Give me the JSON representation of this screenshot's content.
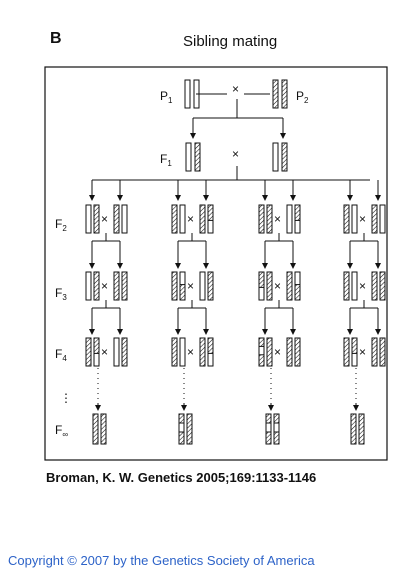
{
  "figure": {
    "panel_letter": "B",
    "title": "Sibling mating",
    "cross_symbol": "×",
    "ellipsis": "⋮",
    "generations": [
      {
        "base": "P",
        "sub": "1"
      },
      {
        "base": "P",
        "sub": "2"
      },
      {
        "base": "F",
        "sub": "1"
      },
      {
        "base": "F",
        "sub": "2"
      },
      {
        "base": "F",
        "sub": "3"
      },
      {
        "base": "F",
        "sub": "4"
      },
      {
        "base": "F",
        "sub": "∞"
      }
    ]
  },
  "citation": "Broman, K. W. Genetics 2005;169:1133-1146",
  "copyright": "Copyright © 2007 by the Genetics Society of America",
  "colors": {
    "copyright": "#2d63c8",
    "stroke": "#111111"
  }
}
